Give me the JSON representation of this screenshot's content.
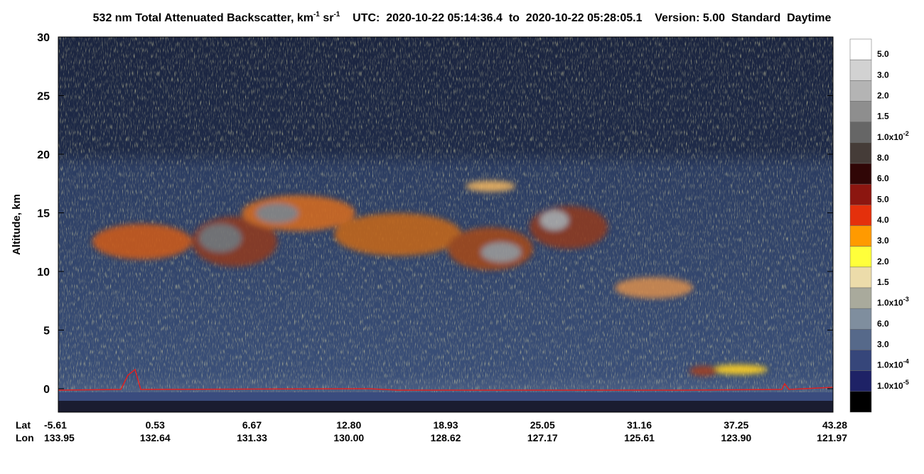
{
  "chart_data": {
    "type": "heatmap",
    "title": {
      "main": "532 nm Total Attenuated Backscatter, km",
      "unit_exp_1": "-1",
      "unit_mid": " sr",
      "unit_exp_2": "-1",
      "utc": "UTC:  2020-10-22 05:14:36.4  to  2020-10-22 05:28:05.1",
      "version": "Version: 5.00  Standard  Daytime"
    },
    "ylabel": "Altitude, km",
    "ylim": [
      -2,
      30
    ],
    "yticks": [
      0,
      5,
      10,
      15,
      20,
      25,
      30
    ],
    "x_rows": [
      {
        "name": "Lat",
        "labels": [
          "-5.61",
          "0.53",
          "6.67",
          "12.80",
          "18.93",
          "25.05",
          "31.16",
          "37.25",
          "43.28"
        ]
      },
      {
        "name": "Lon",
        "labels": [
          "133.95",
          "132.64",
          "131.33",
          "130.00",
          "128.62",
          "127.17",
          "125.61",
          "123.90",
          "121.97"
        ]
      }
    ],
    "colorbar": {
      "colors": [
        "#ffffff",
        "#d2d2d2",
        "#b4b4b4",
        "#8e8e8e",
        "#666666",
        "#453c38",
        "#300606",
        "#8c1610",
        "#e4300c",
        "#ff9a00",
        "#ffff3a",
        "#ecdcaa",
        "#a9aa9c",
        "#7f8e9e",
        "#56698a",
        "#36467a",
        "#1e2266",
        "#000000"
      ],
      "labels": [
        {
          "label": "5.0"
        },
        {
          "label": "3.0"
        },
        {
          "label": "2.0"
        },
        {
          "label": "1.5"
        },
        {
          "label": "1.0x10",
          "exponent": "-2"
        },
        {
          "label": "8.0"
        },
        {
          "label": "6.0"
        },
        {
          "label": "5.0"
        },
        {
          "label": "4.0"
        },
        {
          "label": "3.0"
        },
        {
          "label": "2.0"
        },
        {
          "label": "1.5"
        },
        {
          "label": "1.0x10",
          "exponent": "-3"
        },
        {
          "label": "6.0"
        },
        {
          "label": "3.0"
        },
        {
          "label": "1.0x10",
          "exponent": "-4"
        },
        {
          "label": "1.0x10",
          "exponent": "-5"
        }
      ]
    }
  }
}
